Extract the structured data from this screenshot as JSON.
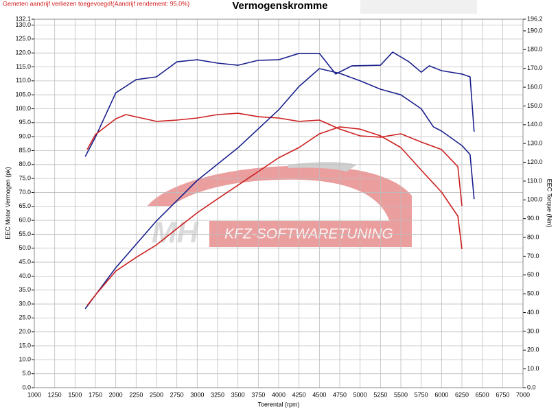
{
  "chart_data": {
    "type": "line",
    "title": "Vermogenskromme",
    "note": "Gemeten aandrijf verliezen toegevoegd!(Aandrijf rendement: 95.0%)",
    "xlabel": "Toerental (rpm)",
    "ylabel": "EEC Motor Vermogen (pk)",
    "y2label": "EEC Torque (Nm)",
    "watermark": [
      "MH",
      "KFZ-SOFTWARETUNING"
    ],
    "grid": true,
    "xlim": [
      1000,
      7000
    ],
    "xticks": [
      1000,
      1250,
      1500,
      1750,
      2000,
      2250,
      2500,
      2750,
      3000,
      3250,
      3500,
      3750,
      4000,
      4250,
      4500,
      4750,
      5000,
      5250,
      5500,
      5750,
      6000,
      6250,
      6500,
      6750,
      7000
    ],
    "ylim": [
      0,
      132.1
    ],
    "yticks": [
      {
        "value": 0,
        "label": "0.0"
      },
      {
        "value": 5,
        "label": "5.0"
      },
      {
        "value": 10,
        "label": "10.0"
      },
      {
        "value": 15,
        "label": "15.0"
      },
      {
        "value": 20,
        "label": "20.0"
      },
      {
        "value": 25,
        "label": "25.0"
      },
      {
        "value": 30,
        "label": "30.0"
      },
      {
        "value": 35,
        "label": "35.0"
      },
      {
        "value": 40,
        "label": "40.0"
      },
      {
        "value": 45,
        "label": "45.0"
      },
      {
        "value": 50,
        "label": "50.0"
      },
      {
        "value": 55,
        "label": "55.0"
      },
      {
        "value": 60,
        "label": "60.0"
      },
      {
        "value": 65,
        "label": "65.0"
      },
      {
        "value": 70,
        "label": "70.0"
      },
      {
        "value": 75,
        "label": "75.0"
      },
      {
        "value": 80,
        "label": "80.0"
      },
      {
        "value": 85,
        "label": "85.0"
      },
      {
        "value": 90,
        "label": "90.0"
      },
      {
        "value": 95,
        "label": "95.0"
      },
      {
        "value": 100,
        "label": "100.0"
      },
      {
        "value": 105,
        "label": "105.0"
      },
      {
        "value": 110,
        "label": "110.0"
      },
      {
        "value": 115,
        "label": "115.0"
      },
      {
        "value": 120,
        "label": "120.0"
      },
      {
        "value": 125,
        "label": "125.0"
      },
      {
        "value": 130,
        "label": "130.0"
      },
      132.1
    ],
    "y2lim": [
      0,
      196.2
    ],
    "y2ticks": [
      {
        "value": 0,
        "label": "0.0"
      },
      {
        "value": 10,
        "label": "10.0"
      },
      {
        "value": 20,
        "label": "20.0"
      },
      {
        "value": 30,
        "label": "30.0"
      },
      {
        "value": 40,
        "label": "40.0"
      },
      {
        "value": 50,
        "label": "50.0"
      },
      {
        "value": 60,
        "label": "60.0"
      },
      {
        "value": 70,
        "label": "70.0"
      },
      {
        "value": 80,
        "label": "80.0"
      },
      {
        "value": 90,
        "label": "90.0"
      },
      {
        "value": 100,
        "label": "100.0"
      },
      {
        "value": 110,
        "label": "110.0"
      },
      {
        "value": 120,
        "label": "120.0"
      },
      {
        "value": 130,
        "label": "130.0"
      },
      {
        "value": 140,
        "label": "140.0"
      },
      {
        "value": 150,
        "label": "150.0"
      },
      {
        "value": 160,
        "label": "160.0"
      },
      {
        "value": 170,
        "label": "170.0"
      },
      {
        "value": 180,
        "label": "180.0"
      },
      {
        "value": 190,
        "label": "190.0"
      },
      196.2
    ],
    "series": [
      {
        "color": "#1a1f8c",
        "axis": "y2",
        "x": [
          1625,
          1750,
          2000,
          2250,
          2500,
          2750,
          3000,
          3250,
          3500,
          3750,
          4000,
          4250,
          4500,
          4700,
          4900,
          5250,
          5400,
          5600,
          5750,
          5850,
          6000,
          6250,
          6350,
          6400
        ],
        "values": [
          123.1,
          133.4,
          157,
          164,
          165.5,
          173.5,
          174.6,
          172.8,
          171.7,
          174.3,
          174.6,
          178,
          178,
          167,
          171.4,
          171.7,
          178.7,
          173.5,
          168,
          171.4,
          168.8,
          167,
          165.5,
          136.3
        ]
      },
      {
        "color": "#cc1f1f",
        "axis": "y2",
        "x": [
          1650,
          1750,
          2000,
          2125,
          2500,
          2750,
          3000,
          3250,
          3500,
          3750,
          4000,
          4250,
          4500,
          4750,
          5000,
          5250,
          5500,
          5750,
          6000,
          6200,
          6250
        ],
        "values": [
          126.8,
          134.8,
          143.2,
          145.4,
          141.8,
          142.5,
          143.6,
          145.4,
          146.1,
          144.3,
          143.6,
          141.8,
          142.5,
          137.7,
          134.1,
          133.4,
          135.2,
          130.8,
          126.8,
          117.7,
          96.8
        ]
      },
      {
        "color": "#1a1f8c",
        "x": [
          1625,
          2000,
          2500,
          3000,
          3500,
          4000,
          4250,
          4500,
          4750,
          5000,
          5250,
          5500,
          5750,
          5900,
          6000,
          6250,
          6350,
          6400
        ],
        "values": [
          28.3,
          43,
          59.8,
          74.3,
          86,
          99.6,
          108,
          114.4,
          112.7,
          110,
          107,
          105,
          100,
          93.5,
          92,
          86.8,
          83.6,
          67.6
        ]
      },
      {
        "color": "#cc1f1f",
        "x": [
          1650,
          1750,
          2000,
          2250,
          2500,
          2750,
          3000,
          3250,
          3500,
          3750,
          4000,
          4250,
          4500,
          4750,
          5000,
          5250,
          5500,
          5750,
          6000,
          6200,
          6250
        ],
        "values": [
          29.5,
          33.2,
          41.8,
          46.7,
          51.2,
          57,
          62.7,
          67.7,
          72.6,
          77.5,
          82.4,
          86.1,
          91,
          93.5,
          92.7,
          90.3,
          86.1,
          78,
          70.1,
          61.5,
          49.7
        ]
      }
    ]
  }
}
